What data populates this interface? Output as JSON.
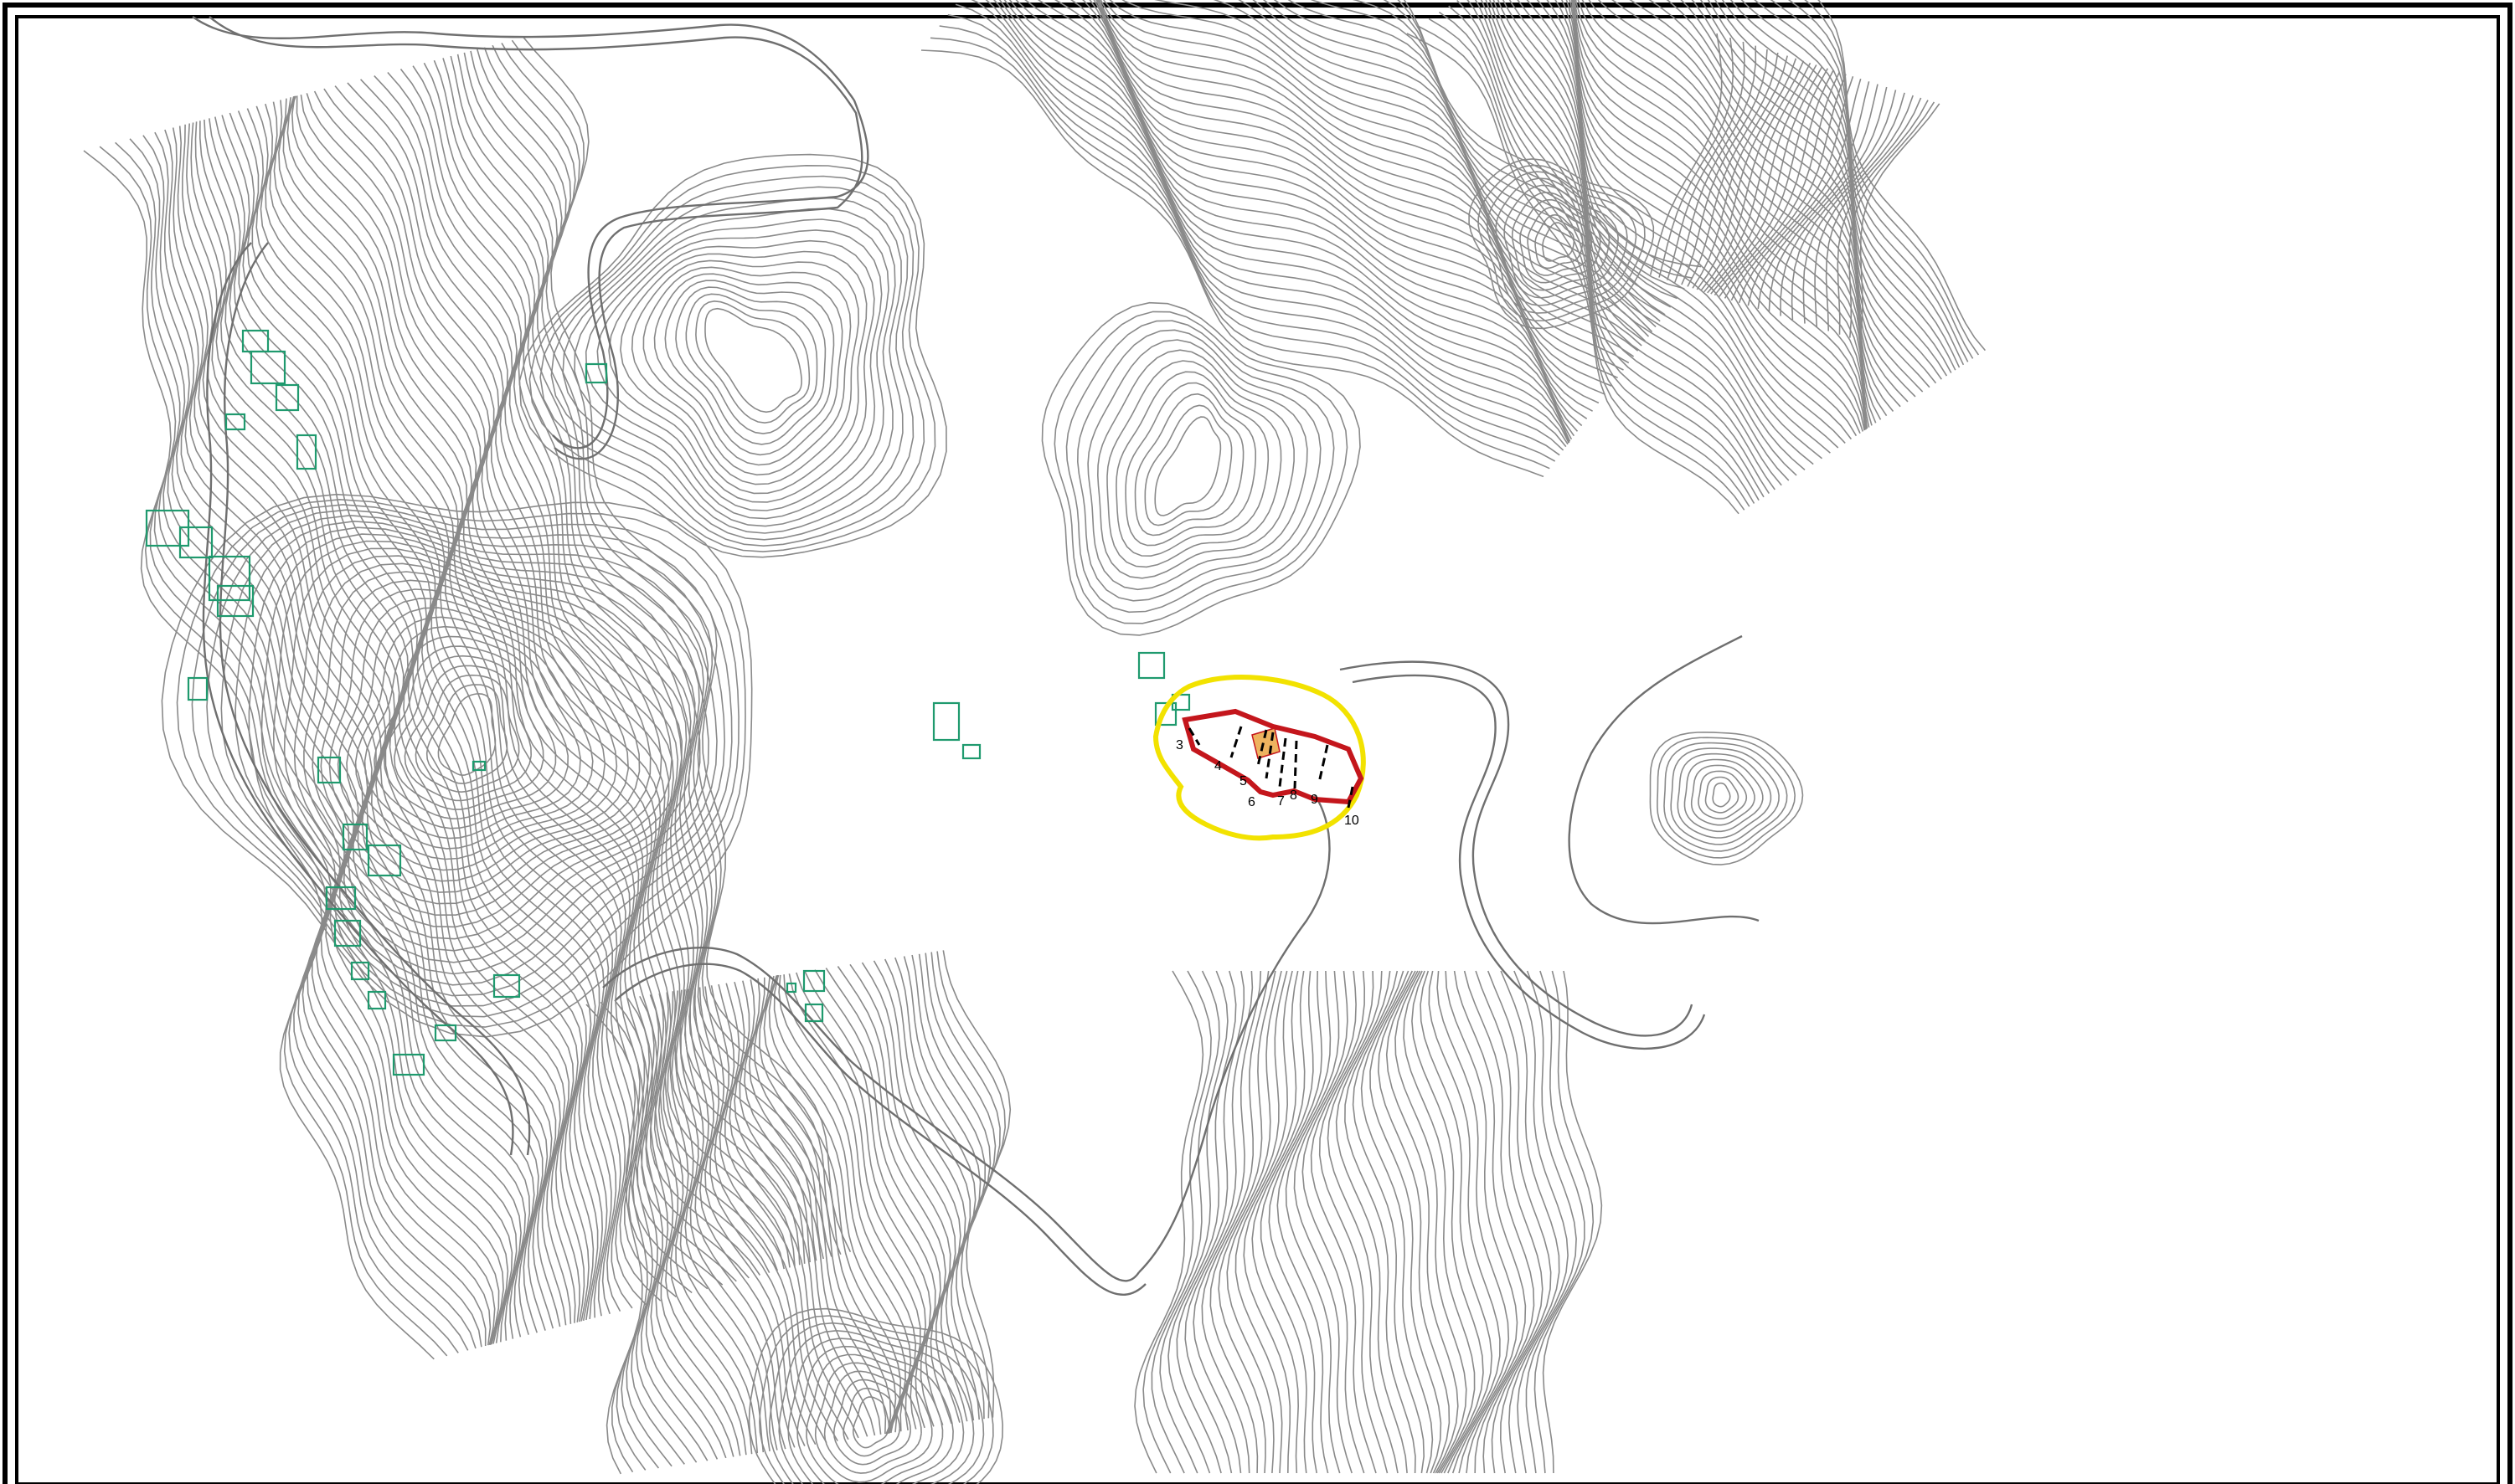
{
  "map": {
    "section_labels": [
      "3",
      "4",
      "5",
      "6",
      "7",
      "8",
      "9",
      "10"
    ],
    "colors": {
      "frame": "#000000",
      "contour": "#8a8a8a",
      "road": "#707070",
      "building": "#1f9a6e",
      "boundary_outer": "#f2e200",
      "boundary_inner": "#c4161c",
      "highlight": "#e89a2a",
      "section_line": "#000000"
    },
    "icons": [
      "building-outline",
      "section-marker"
    ]
  }
}
